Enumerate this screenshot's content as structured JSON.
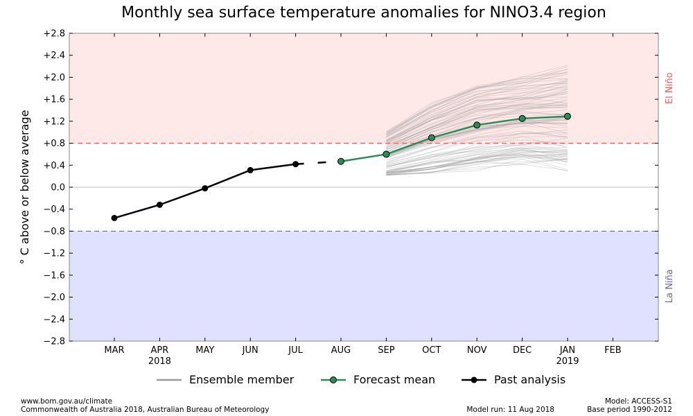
{
  "chart_data": {
    "type": "line",
    "title": "Monthly sea surface temperature anomalies for NINO3.4 region",
    "ylabel": "° C above or below average",
    "ylim": [
      -2.8,
      2.8
    ],
    "yticks": [
      "+2.8",
      "+2.4",
      "+2.0",
      "+1.6",
      "+1.2",
      "+0.8",
      "+0.4",
      "0.0",
      "−0.4",
      "−0.8",
      "−1.2",
      "−1.6",
      "−2.0",
      "−2.4",
      "−2.8"
    ],
    "categories": [
      "MAR",
      "APR",
      "MAY",
      "JUN",
      "JUL",
      "AUG",
      "SEP",
      "OCT",
      "NOV",
      "DEC",
      "JAN",
      "FEB"
    ],
    "year_labels": [
      {
        "category": "APR",
        "label": "2018"
      },
      {
        "category": "JAN",
        "label": "2019"
      }
    ],
    "thresholds": {
      "el_nino": {
        "value": 0.8,
        "label": "El Niño",
        "color": "#e06060",
        "fill": "#ffe8e8"
      },
      "la_nina": {
        "value": -0.8,
        "label": "La Niña",
        "color": "#6666aa",
        "fill": "#e0e0ff"
      }
    },
    "series": [
      {
        "name": "Past analysis",
        "color": "#000000",
        "x": [
          "MAR",
          "APR",
          "MAY",
          "JUN",
          "JUL"
        ],
        "values": [
          -0.56,
          -0.32,
          -0.02,
          0.31,
          0.42
        ]
      },
      {
        "name": "Forecast mean",
        "color": "#2e8b57",
        "x": [
          "AUG",
          "SEP",
          "OCT",
          "NOV",
          "DEC",
          "JAN"
        ],
        "values": [
          0.47,
          0.6,
          0.9,
          1.13,
          1.25,
          1.29
        ]
      },
      {
        "name": "Ensemble member",
        "color": "#999999",
        "x": [
          "SEP",
          "OCT",
          "NOV",
          "DEC",
          "JAN"
        ],
        "range_low": [
          0.22,
          0.2,
          0.3,
          0.35,
          0.27
        ],
        "range_high": [
          1.15,
          1.62,
          2.0,
          2.05,
          2.27
        ],
        "member_count": 99
      }
    ],
    "legend": {
      "position": "bottom",
      "entries": [
        "Ensemble member",
        "Forecast mean",
        "Past analysis"
      ]
    }
  },
  "footer": {
    "left_line1": "www.bom.gov.au/climate",
    "left_line2": "Commonwealth of Australia 2018, Australian Bureau of Meteorology",
    "middle": "Model run: 11 Aug 2018",
    "right_line1": "Model: ACCESS-S1",
    "right_line2": "Base period 1990-2012"
  }
}
